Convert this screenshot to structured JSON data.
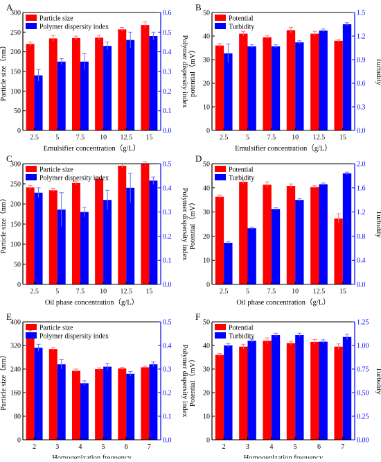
{
  "colors": {
    "red": "#ff0000",
    "blue": "#0000ff",
    "axis": "#000000",
    "right_axis": "#0000ff"
  },
  "chart_data": [
    {
      "panel_label": "A",
      "type": "bar",
      "categories": [
        "2.5",
        "5",
        "7.5",
        "10",
        "12.5",
        "15"
      ],
      "xlabel": "Emulsifier concentration（g/L）",
      "ylabel_left": "Particle size（nm）",
      "ylabel_right": "Polymer dispersity index",
      "ylim_left": [
        0,
        300
      ],
      "yticks_left": [
        "0",
        "50",
        "100",
        "150",
        "200",
        "250",
        "300"
      ],
      "ylim_right": [
        0,
        0.6
      ],
      "yticks_right": [
        "0.0",
        "0.1",
        "0.2",
        "0.3",
        "0.4",
        "0.5",
        "0.6"
      ],
      "legend_position": "top-left",
      "series": [
        {
          "name": "Particle size",
          "axis": "left",
          "values": [
            220,
            234,
            235,
            236,
            257,
            268
          ],
          "errors": [
            5,
            8,
            5,
            6,
            5,
            8
          ]
        },
        {
          "name": "Polymer dispersity index",
          "axis": "right",
          "values": [
            0.28,
            0.35,
            0.35,
            0.43,
            0.46,
            0.48
          ],
          "errors": [
            0.03,
            0.015,
            0.04,
            0.02,
            0.04,
            0.02
          ]
        }
      ]
    },
    {
      "panel_label": "B",
      "type": "bar",
      "categories": [
        "2.5",
        "5",
        "7.5",
        "10",
        "12.5",
        "15"
      ],
      "xlabel": "Emulsifier concentration（g/L）",
      "ylabel_left": "potential（mV）",
      "ylabel_right": "Turbidity",
      "ylim_left": [
        0,
        50
      ],
      "yticks_left": [
        "0",
        "10",
        "20",
        "30",
        "40",
        "50"
      ],
      "ylim_right": [
        0,
        1.5
      ],
      "yticks_right": [
        "0.0",
        "0.3",
        "0.6",
        "0.9",
        "1.2",
        "1.5"
      ],
      "legend_position": "top-left",
      "series": [
        {
          "name": "Potential",
          "axis": "left",
          "values": [
            36,
            41,
            39.5,
            42.5,
            41,
            38
          ],
          "errors": [
            0.8,
            1,
            0.8,
            1.2,
            1,
            0.5
          ]
        },
        {
          "name": "Turbidity",
          "axis": "right",
          "values": [
            0.98,
            1.07,
            1.07,
            1.12,
            1.27,
            1.35
          ],
          "errors": [
            0.12,
            0.02,
            0.02,
            0.02,
            0.02,
            0.02
          ]
        }
      ]
    },
    {
      "panel_label": "C",
      "type": "bar",
      "categories": [
        "2.5",
        "5",
        "7.5",
        "10",
        "12.5",
        "15"
      ],
      "xlabel": "Oil phase concentration（g/L）",
      "ylabel_left": "Particle size（nm）",
      "ylabel_right": "Polymer dispersity index",
      "ylim_left": [
        0,
        300
      ],
      "yticks_left": [
        "0",
        "50",
        "100",
        "150",
        "200",
        "250",
        "300"
      ],
      "ylim_right": [
        0,
        0.5
      ],
      "yticks_right": [
        "0.0",
        "0.1",
        "0.2",
        "0.3",
        "0.4",
        "0.5"
      ],
      "legend_position": "top-left",
      "series": [
        {
          "name": "Particle size",
          "axis": "left",
          "values": [
            241,
            234,
            252,
            263,
            295,
            300
          ],
          "errors": [
            5,
            5,
            5,
            4,
            5,
            5
          ]
        },
        {
          "name": "Polymer dispersity index",
          "axis": "right",
          "values": [
            0.38,
            0.31,
            0.3,
            0.35,
            0.4,
            0.43
          ],
          "errors": [
            0.02,
            0.07,
            0.02,
            0.04,
            0.06,
            0.015
          ]
        }
      ]
    },
    {
      "panel_label": "D",
      "type": "bar",
      "categories": [
        "2.5",
        "5",
        "7.5",
        "10",
        "12.5",
        "15"
      ],
      "xlabel": "Oil phase concentration（g/L）",
      "ylabel_left": "Potential（mV）",
      "ylabel_right": "Turbidity",
      "ylim_left": [
        0,
        50
      ],
      "yticks_left": [
        "0",
        "10",
        "20",
        "30",
        "40",
        "50"
      ],
      "ylim_right": [
        0,
        2.0
      ],
      "yticks_right": [
        "0.0",
        "0.4",
        "0.8",
        "1.2",
        "1.6",
        "2.0"
      ],
      "legend_position": "top-left",
      "series": [
        {
          "name": "Potential",
          "axis": "left",
          "values": [
            36.3,
            42.5,
            41.3,
            40.8,
            40.3,
            27.3
          ],
          "errors": [
            0.7,
            0.8,
            1.2,
            0.8,
            0.6,
            2
          ]
        },
        {
          "name": "Turbidity",
          "axis": "right",
          "values": [
            0.69,
            0.93,
            1.25,
            1.4,
            1.66,
            1.84
          ],
          "errors": [
            0.02,
            0.02,
            0.02,
            0.02,
            0.02,
            0.02
          ]
        }
      ]
    },
    {
      "panel_label": "E",
      "type": "bar",
      "categories": [
        "2",
        "3",
        "4",
        "5",
        "6",
        "7"
      ],
      "xlabel": "Homogenization frequency",
      "ylabel_left": "Particle size（nm）",
      "ylabel_right": "Polymer dispersity index",
      "ylim_left": [
        0,
        400
      ],
      "yticks_left": [
        "0",
        "80",
        "160",
        "240",
        "320",
        "400"
      ],
      "ylim_right": [
        0,
        0.5
      ],
      "yticks_right": [
        "0.0",
        "0.1",
        "0.2",
        "0.3",
        "0.4",
        "0.5"
      ],
      "legend_position": "top-left",
      "series": [
        {
          "name": "Particle size",
          "axis": "left",
          "values": [
            355,
            308,
            234,
            240,
            242,
            246
          ],
          "errors": [
            15,
            6,
            6,
            4,
            4,
            3
          ]
        },
        {
          "name": "Polymer dispersity index",
          "axis": "right",
          "values": [
            0.39,
            0.32,
            0.24,
            0.31,
            0.28,
            0.32
          ],
          "errors": [
            0.015,
            0.02,
            0.01,
            0.015,
            0.01,
            0.01
          ]
        }
      ]
    },
    {
      "panel_label": "F",
      "type": "bar",
      "categories": [
        "2",
        "3",
        "4",
        "5",
        "6",
        "7"
      ],
      "xlabel": "Homogenization frequency",
      "ylabel_left": "Potential（mV）",
      "ylabel_right": "Turbidity",
      "ylim_left": [
        0,
        50
      ],
      "yticks_left": [
        "0",
        "10",
        "20",
        "30",
        "40",
        "50"
      ],
      "ylim_right": [
        0,
        1.25
      ],
      "yticks_right": [
        "0.00",
        "0.25",
        "0.50",
        "0.75",
        "1.00",
        "1.25"
      ],
      "legend_position": "top-left",
      "series": [
        {
          "name": "Potential",
          "axis": "left",
          "values": [
            36,
            39.5,
            42,
            41,
            41.5,
            39.5
          ],
          "errors": [
            0.6,
            1,
            1.2,
            0.8,
            1,
            1.2
          ]
        },
        {
          "name": "Turbidity",
          "axis": "right",
          "values": [
            1.0,
            1.05,
            1.11,
            1.11,
            1.04,
            1.09
          ],
          "errors": [
            0.02,
            0.02,
            0.02,
            0.02,
            0.02,
            0.03
          ]
        }
      ]
    }
  ]
}
